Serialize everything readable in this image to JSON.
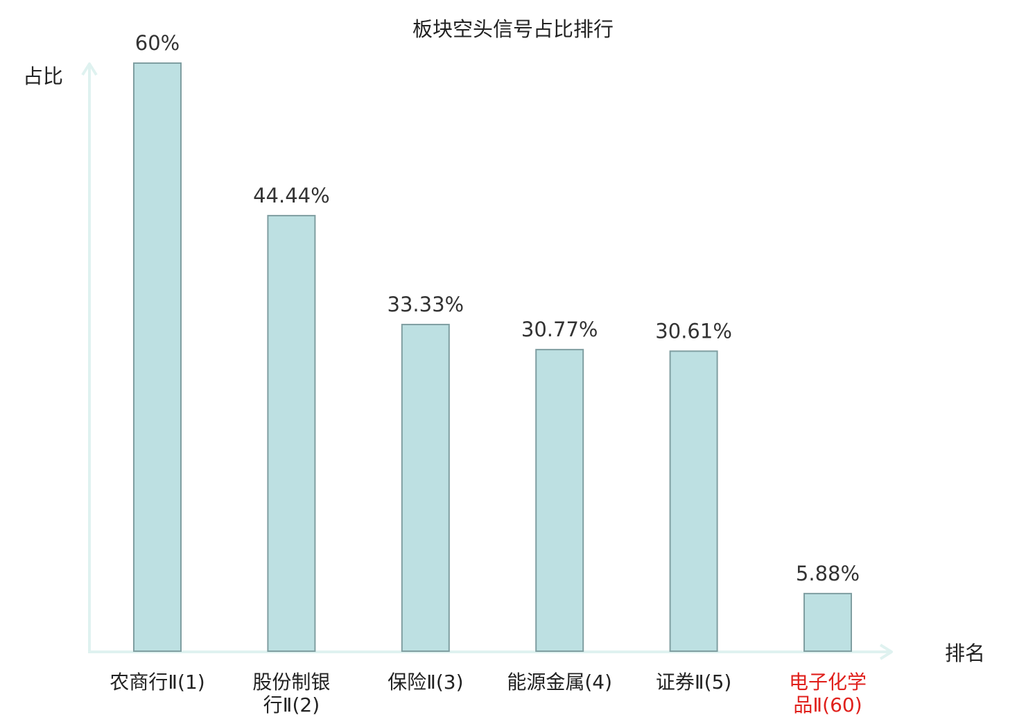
{
  "chart_data": {
    "type": "bar",
    "title": "板块空头信号占比排行",
    "ylabel": "占比",
    "xlabel": "排名",
    "ylim": [
      0,
      60
    ],
    "grid": false,
    "categories": [
      [
        "农商行Ⅱ(1)"
      ],
      [
        "股份制银",
        "行Ⅱ(2)"
      ],
      [
        "保险Ⅱ(3)"
      ],
      [
        "能源金属(4)"
      ],
      [
        "证券Ⅱ(5)"
      ],
      [
        "电子化学",
        "品Ⅱ(60)"
      ]
    ],
    "values": [
      60,
      44.44,
      33.33,
      30.77,
      30.61,
      5.88
    ],
    "value_labels": [
      "60%",
      "44.44%",
      "33.33%",
      "30.77%",
      "30.61%",
      "5.88%"
    ],
    "highlight_index": 5,
    "colors": {
      "bar_fill": "#bde0e2",
      "bar_stroke": "#7f9ea1",
      "axis": "#dff2f0",
      "text": "#222222",
      "value_label": "#333333",
      "highlight_text": "#e0201c"
    }
  }
}
